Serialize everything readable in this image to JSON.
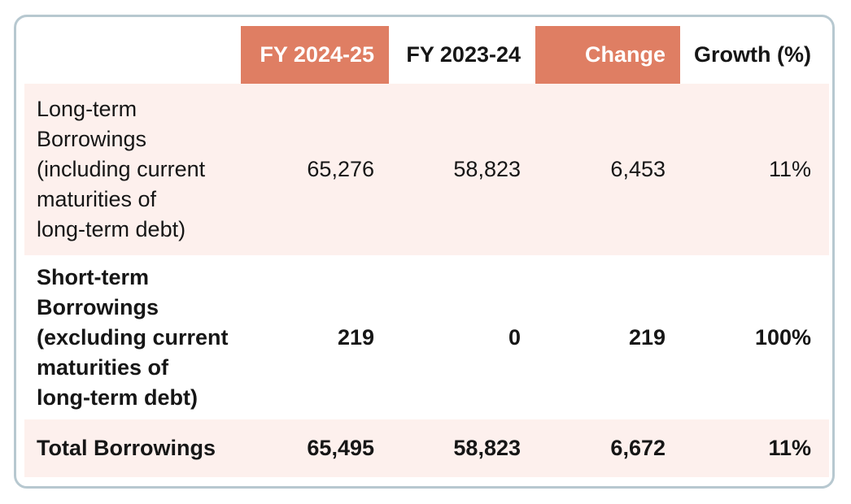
{
  "colors": {
    "accent": "#DF7E63",
    "row_highlight": "#FDF0ED",
    "border": "#B7C8D0",
    "text": "#161616",
    "header_text_on_accent": "#FFFFFF"
  },
  "table": {
    "header": {
      "empty": "",
      "fy2425": "FY 2024-25",
      "fy2324": "FY 2023-24",
      "change": "Change",
      "growth": "Growth (%)"
    },
    "rows": [
      {
        "label": "Long-term\nBorrowings\n(including current\nmaturities of\nlong-term debt)",
        "fy2425": "65,276",
        "fy2324": "58,823",
        "change": "6,453",
        "growth": "11%"
      },
      {
        "label": "Short-term\nBorrowings\n(excluding current\nmaturities of\nlong-term debt)",
        "fy2425": "219",
        "fy2324": "0",
        "change": "219",
        "growth": "100%"
      },
      {
        "label": "Total Borrowings",
        "fy2425": "65,495",
        "fy2324": "58,823",
        "change": "6,672",
        "growth": "11%"
      }
    ]
  },
  "chart_data": {
    "type": "table",
    "title": "",
    "columns": [
      "",
      "FY 2024-25",
      "FY 2023-24",
      "Change",
      "Growth (%)"
    ],
    "rows": [
      [
        "Long-term Borrowings (including current maturities of long-term debt)",
        "65,276",
        "58,823",
        "6,453",
        "11%"
      ],
      [
        "Short-term Borrowings (excluding current maturities of long-term debt)",
        "219",
        "0",
        "219",
        "100%"
      ],
      [
        "Total Borrowings",
        "65,495",
        "58,823",
        "6,672",
        "11%"
      ]
    ],
    "layout_hints": {
      "highlighted_columns": [
        "FY 2024-25",
        "Change"
      ],
      "highlighted_rows": [
        "Long-term Borrowings",
        "Total Borrowings"
      ],
      "numeric_alignment": "right"
    }
  }
}
